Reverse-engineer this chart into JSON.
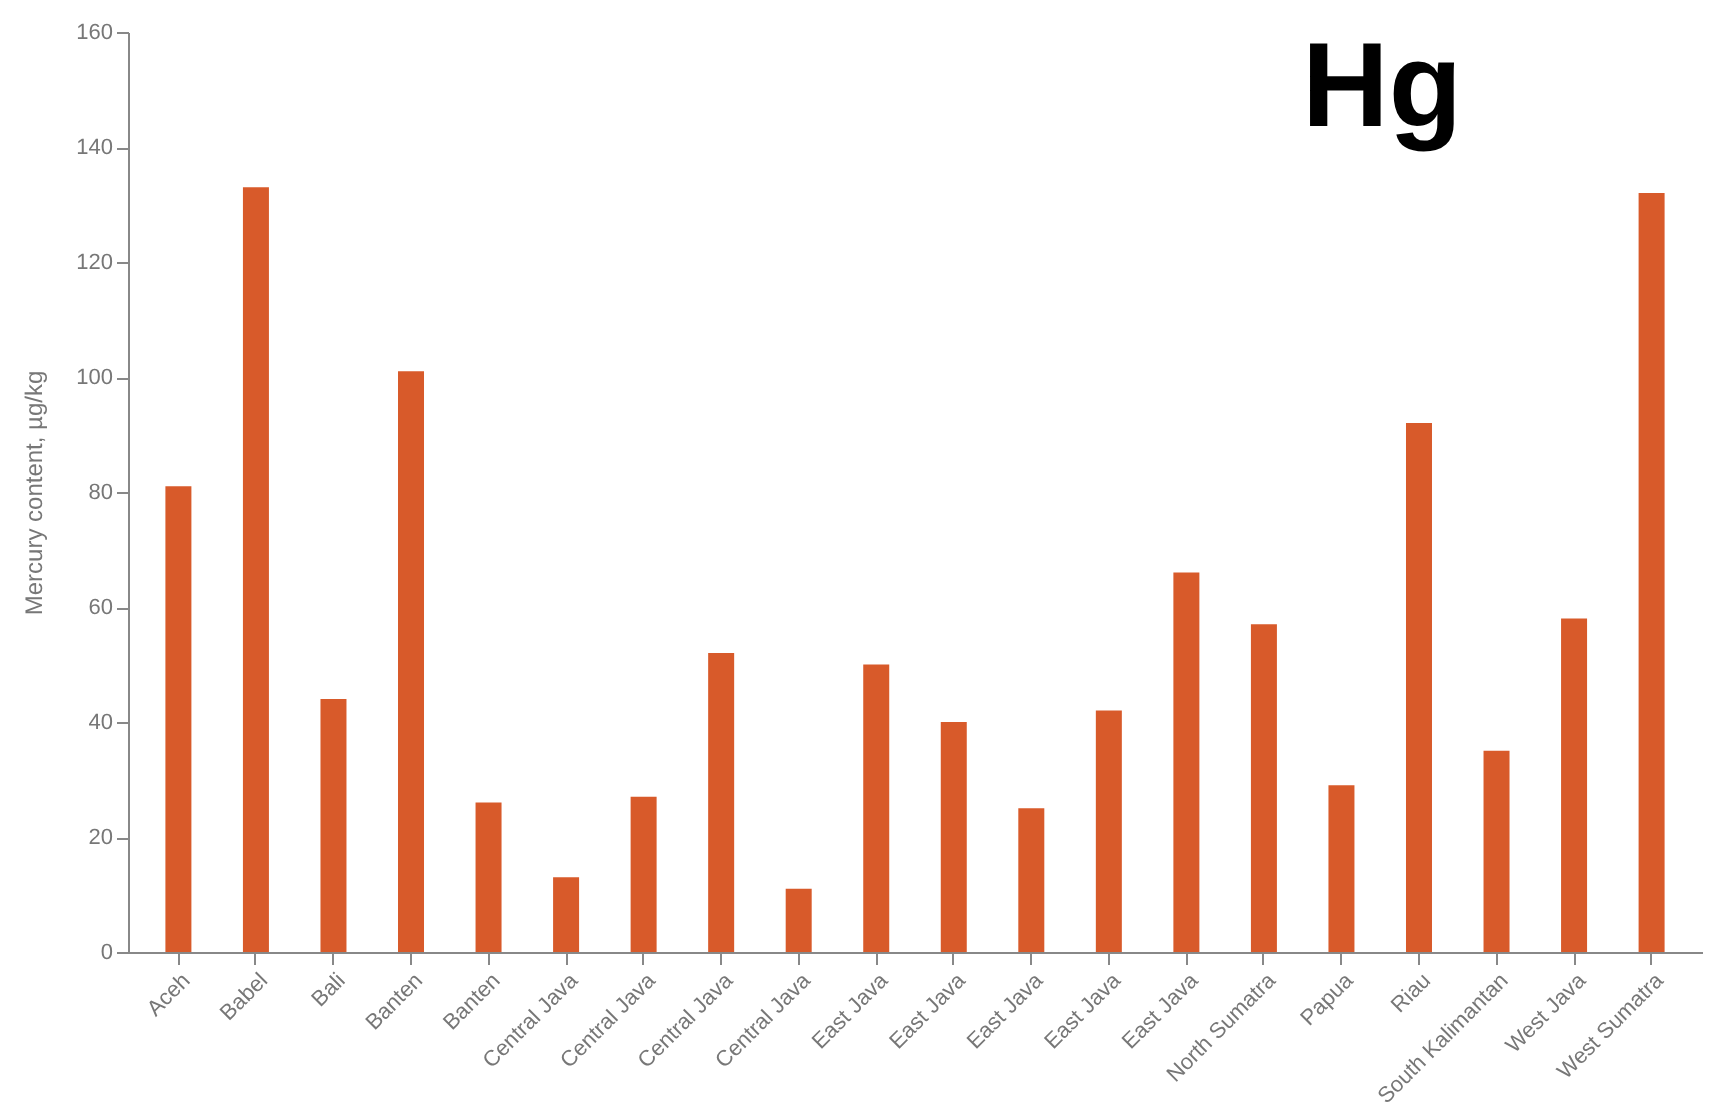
{
  "chart_data": {
    "type": "bar",
    "title": "Hg",
    "ylabel": "Mercury content, µg/kg",
    "categories": [
      "Aceh",
      "Babel",
      "Bali",
      "Banten",
      "Banten",
      "Central Java",
      "Central Java",
      "Central Java",
      "Central Java",
      "East Java",
      "East Java",
      "East Java",
      "East Java",
      "East Java",
      "North Sumatra",
      "Papua",
      "Riau",
      "South Kalimantan",
      "West Java",
      "West Sumatra"
    ],
    "values": [
      81,
      133,
      44,
      101,
      26,
      13,
      27,
      52,
      11,
      50,
      40,
      25,
      42,
      66,
      57,
      29,
      92,
      35,
      58,
      132
    ],
    "color": "#d85a2a",
    "ylim": [
      0,
      160
    ],
    "yticks": [
      0,
      20,
      40,
      60,
      80,
      100,
      120,
      140,
      160
    ],
    "grid": false
  }
}
